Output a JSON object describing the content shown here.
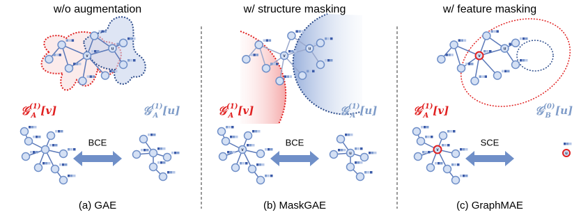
{
  "panels": [
    {
      "title": "w/o augmentation",
      "left_label": {
        "symbol": "𝒢",
        "superscript": "(1)",
        "subscript": "A",
        "index": "[v]"
      },
      "right_label": {
        "symbol": "𝒢",
        "superscript": "(1)",
        "subscript": "A",
        "index": "[u]"
      },
      "loss": "BCE",
      "caption": "(a) GAE",
      "v_node": "v",
      "u_node": "u"
    },
    {
      "title": "w/ structure masking",
      "left_label": {
        "symbol": "𝒢",
        "superscript": "(1)",
        "subscript": "A",
        "index": "[v]"
      },
      "right_label": {
        "symbol": "𝒢",
        "superscript": "(1)",
        "subscript": "A",
        "index": "[u]"
      },
      "loss": "BCE",
      "caption": "(b) MaskGAE",
      "v_node": "v",
      "u_node": "u"
    },
    {
      "title": "w/ feature masking",
      "left_label": {
        "symbol": "𝒢",
        "superscript": "(1)",
        "subscript": "A",
        "index": "[v]"
      },
      "right_label": {
        "symbol": "𝒢",
        "superscript": "(0)",
        "subscript": "B",
        "index": "[u]"
      },
      "loss": "SCE",
      "caption": "(c) GraphMAE",
      "v_node": "v",
      "u_node": "u"
    }
  ]
}
